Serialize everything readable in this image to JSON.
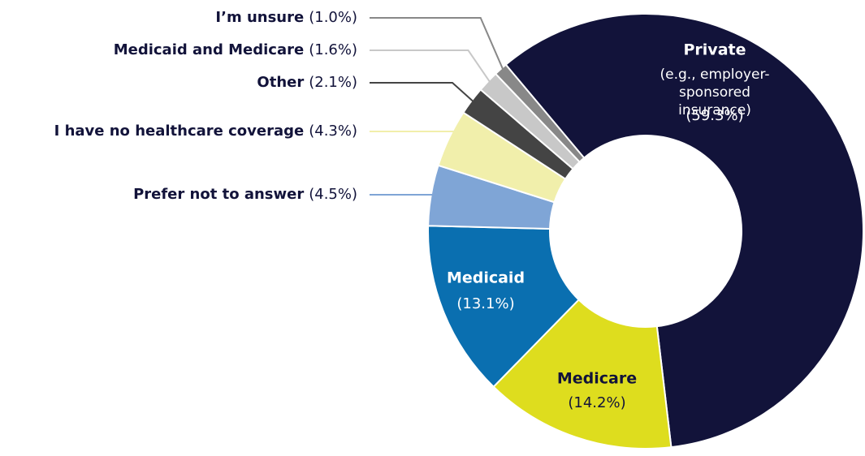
{
  "chart_data": {
    "type": "donut",
    "categories": [
      "Private",
      "Medicare",
      "Medicaid",
      "Prefer not to answer",
      "I have no healthcare coverage",
      "Other",
      "Medicaid and Medicare",
      "I’m unsure"
    ],
    "values": [
      59.3,
      14.2,
      13.1,
      4.5,
      4.3,
      2.1,
      1.6,
      1.0
    ],
    "value_labels": [
      "(59.3%)",
      "(14.2%)",
      "(13.1%)",
      "(4.5%)",
      "(4.3%)",
      "(2.1%)",
      "(1.6%)",
      "(1.0%)"
    ],
    "colors": [
      "#12133a",
      "#dedd1e",
      "#0a6fb0",
      "#7fa5d6",
      "#f1efab",
      "#444444",
      "#c8c8c8",
      "#888888"
    ],
    "annotation": "(e.g., employer-sponsored insurance)"
  }
}
